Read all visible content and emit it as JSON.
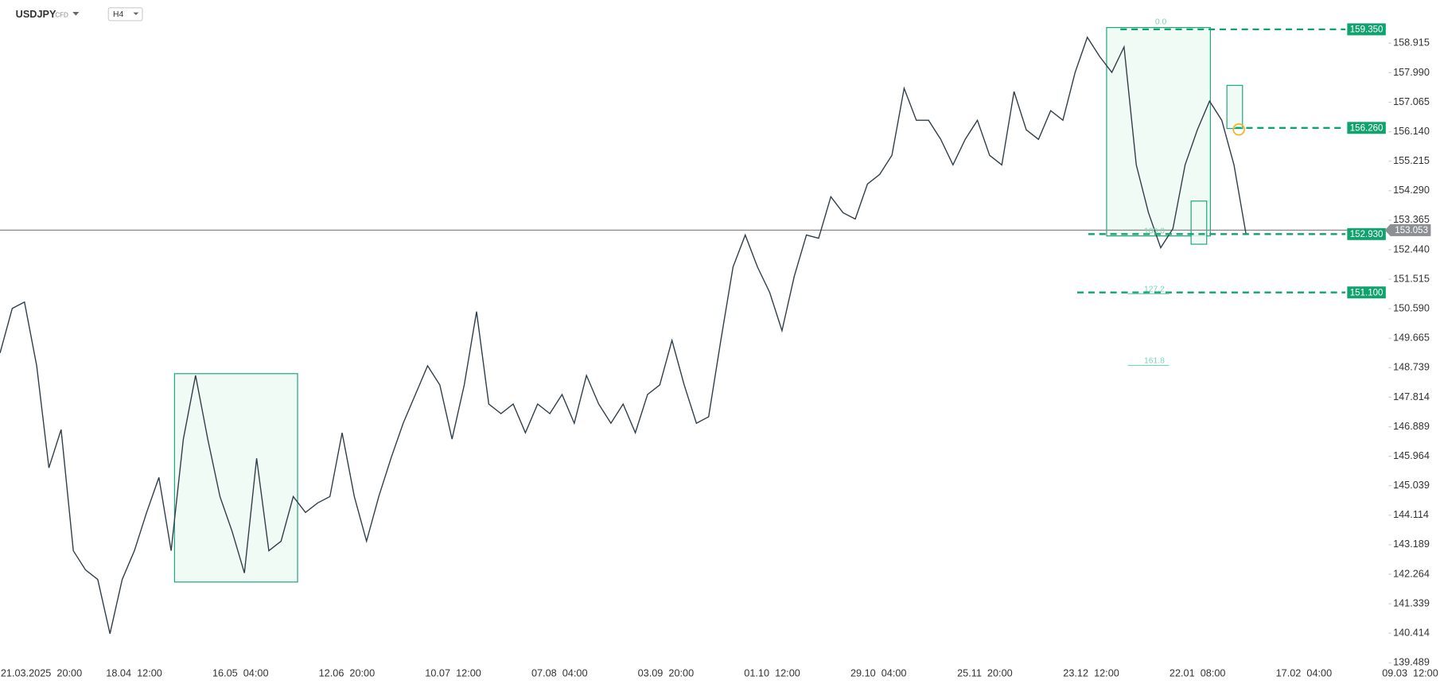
{
  "header": {
    "symbol": "USDJPY",
    "instrument_type": "CFD",
    "timeframe": "H4"
  },
  "chart_data": {
    "type": "line",
    "color": "#2f3d48",
    "values": [
      149.2,
      150.6,
      150.8,
      148.8,
      145.6,
      146.8,
      143.0,
      142.4,
      142.1,
      140.4,
      142.1,
      143.0,
      144.2,
      145.3,
      143.0,
      146.5,
      148.5,
      146.5,
      144.7,
      143.6,
      142.3,
      145.9,
      143.0,
      143.3,
      144.7,
      144.2,
      144.5,
      144.7,
      146.7,
      144.7,
      143.3,
      144.7,
      145.9,
      147.0,
      147.9,
      148.8,
      148.2,
      146.5,
      148.2,
      150.5,
      147.6,
      147.3,
      147.6,
      146.7,
      147.6,
      147.3,
      147.9,
      147.0,
      148.5,
      147.6,
      147.0,
      147.6,
      146.7,
      147.9,
      148.2,
      149.6,
      148.2,
      147.0,
      147.2,
      149.6,
      151.9,
      152.9,
      151.9,
      151.1,
      149.9,
      151.6,
      152.9,
      152.8,
      154.1,
      153.6,
      153.4,
      154.5,
      154.8,
      155.4,
      157.5,
      156.5,
      156.5,
      155.9,
      155.1,
      155.9,
      156.5,
      155.4,
      155.1,
      157.4,
      156.2,
      155.9,
      156.8,
      156.5,
      158.0,
      159.1,
      158.5,
      158.0,
      158.8,
      155.1,
      153.6,
      152.5,
      153.1,
      155.1,
      156.2,
      157.1,
      156.5,
      155.1,
      152.9
    ],
    "x_labels": [
      "21.03.2025  20:00",
      "18.04  12:00",
      "16.05  04:00",
      "12.06  20:00",
      "10.07  12:00",
      "07.08  04:00",
      "03.09  20:00",
      "01.10  12:00",
      "29.10  04:00",
      "25.11  20:00",
      "23.12  12:00",
      "22.01  08:00",
      "17.02  04:00",
      "09.03  12:00"
    ],
    "ylim": [
      138.91,
      160.27
    ],
    "yticks": [
      158.915,
      {
        "value": 157.99,
        "label": "157.990"
      },
      157.065,
      {
        "value": 156.14,
        "label": "156.140"
      },
      155.215,
      {
        "value": 154.29,
        "label": "154.290"
      },
      153.365,
      {
        "value": 152.44,
        "label": "152.440"
      },
      151.515,
      {
        "value": 150.59,
        "label": "150.590"
      },
      149.665,
      148.739,
      147.814,
      146.889,
      145.964,
      145.039,
      144.114,
      143.189,
      142.264,
      141.339,
      140.414,
      139.489
    ],
    "levels": [
      {
        "value": 159.35,
        "label": "159.350"
      },
      {
        "value": 156.26,
        "label": "156.260"
      },
      {
        "value": 152.93,
        "label": "152.930"
      },
      {
        "value": 151.1,
        "label": "151.100"
      }
    ],
    "level_color": "#10a36d",
    "current_price": 153.053,
    "fib_labels": [
      "0.0",
      "100.0",
      "127.2",
      "161.8"
    ]
  }
}
